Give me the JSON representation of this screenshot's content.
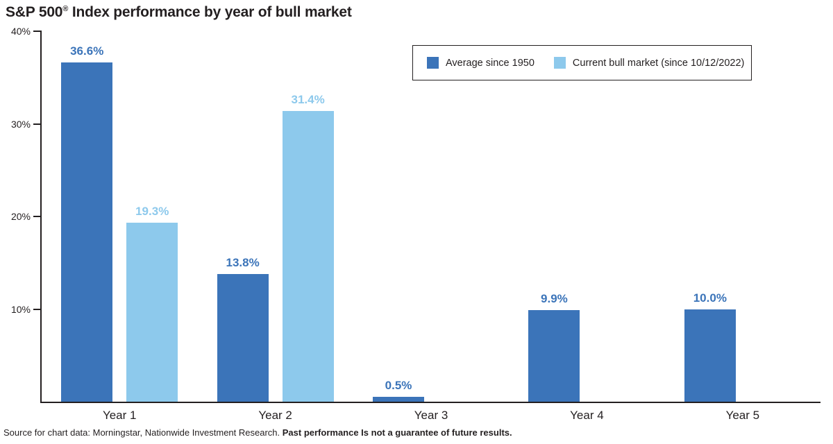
{
  "header": {
    "title_prefix": "S&P 500",
    "title_reg": "®",
    "title_rest": " Index performance by year of bull market"
  },
  "chart_data": {
    "type": "bar",
    "title": "S&P 500® Index performance by year of bull market",
    "categories": [
      "Year 1",
      "Year 2",
      "Year 3",
      "Year 4",
      "Year 5"
    ],
    "series": [
      {
        "name": "Average since 1950",
        "color": "#3B74B9",
        "values": [
          36.6,
          13.8,
          0.5,
          9.9,
          10.0
        ],
        "labels": [
          "36.6%",
          "13.8%",
          "0.5%",
          "9.9%",
          "10.0%"
        ]
      },
      {
        "name": "Current bull market (since 10/12/2022)",
        "color": "#8DC9EC",
        "values": [
          19.3,
          31.4,
          null,
          null,
          null
        ],
        "labels": [
          "19.3%",
          "31.4%",
          null,
          null,
          null
        ]
      }
    ],
    "xlabel": "",
    "ylabel": "",
    "ylim": [
      0,
      40
    ],
    "yticks": [
      {
        "value": 40,
        "label": "40%"
      },
      {
        "value": 30,
        "label": "30%"
      },
      {
        "value": 20,
        "label": "20%"
      },
      {
        "value": 10,
        "label": "10%"
      }
    ],
    "grid": false,
    "legend_position": "top-right"
  },
  "footer": {
    "source_regular": "Source for chart data: Morningstar, Nationwide Investment Research. ",
    "source_bold": "Past performance Is not a guarantee of future results."
  },
  "colors": {
    "average_blue": "#3B74B9",
    "current_blue": "#8DC9EC",
    "axis_black": "#231f20"
  }
}
